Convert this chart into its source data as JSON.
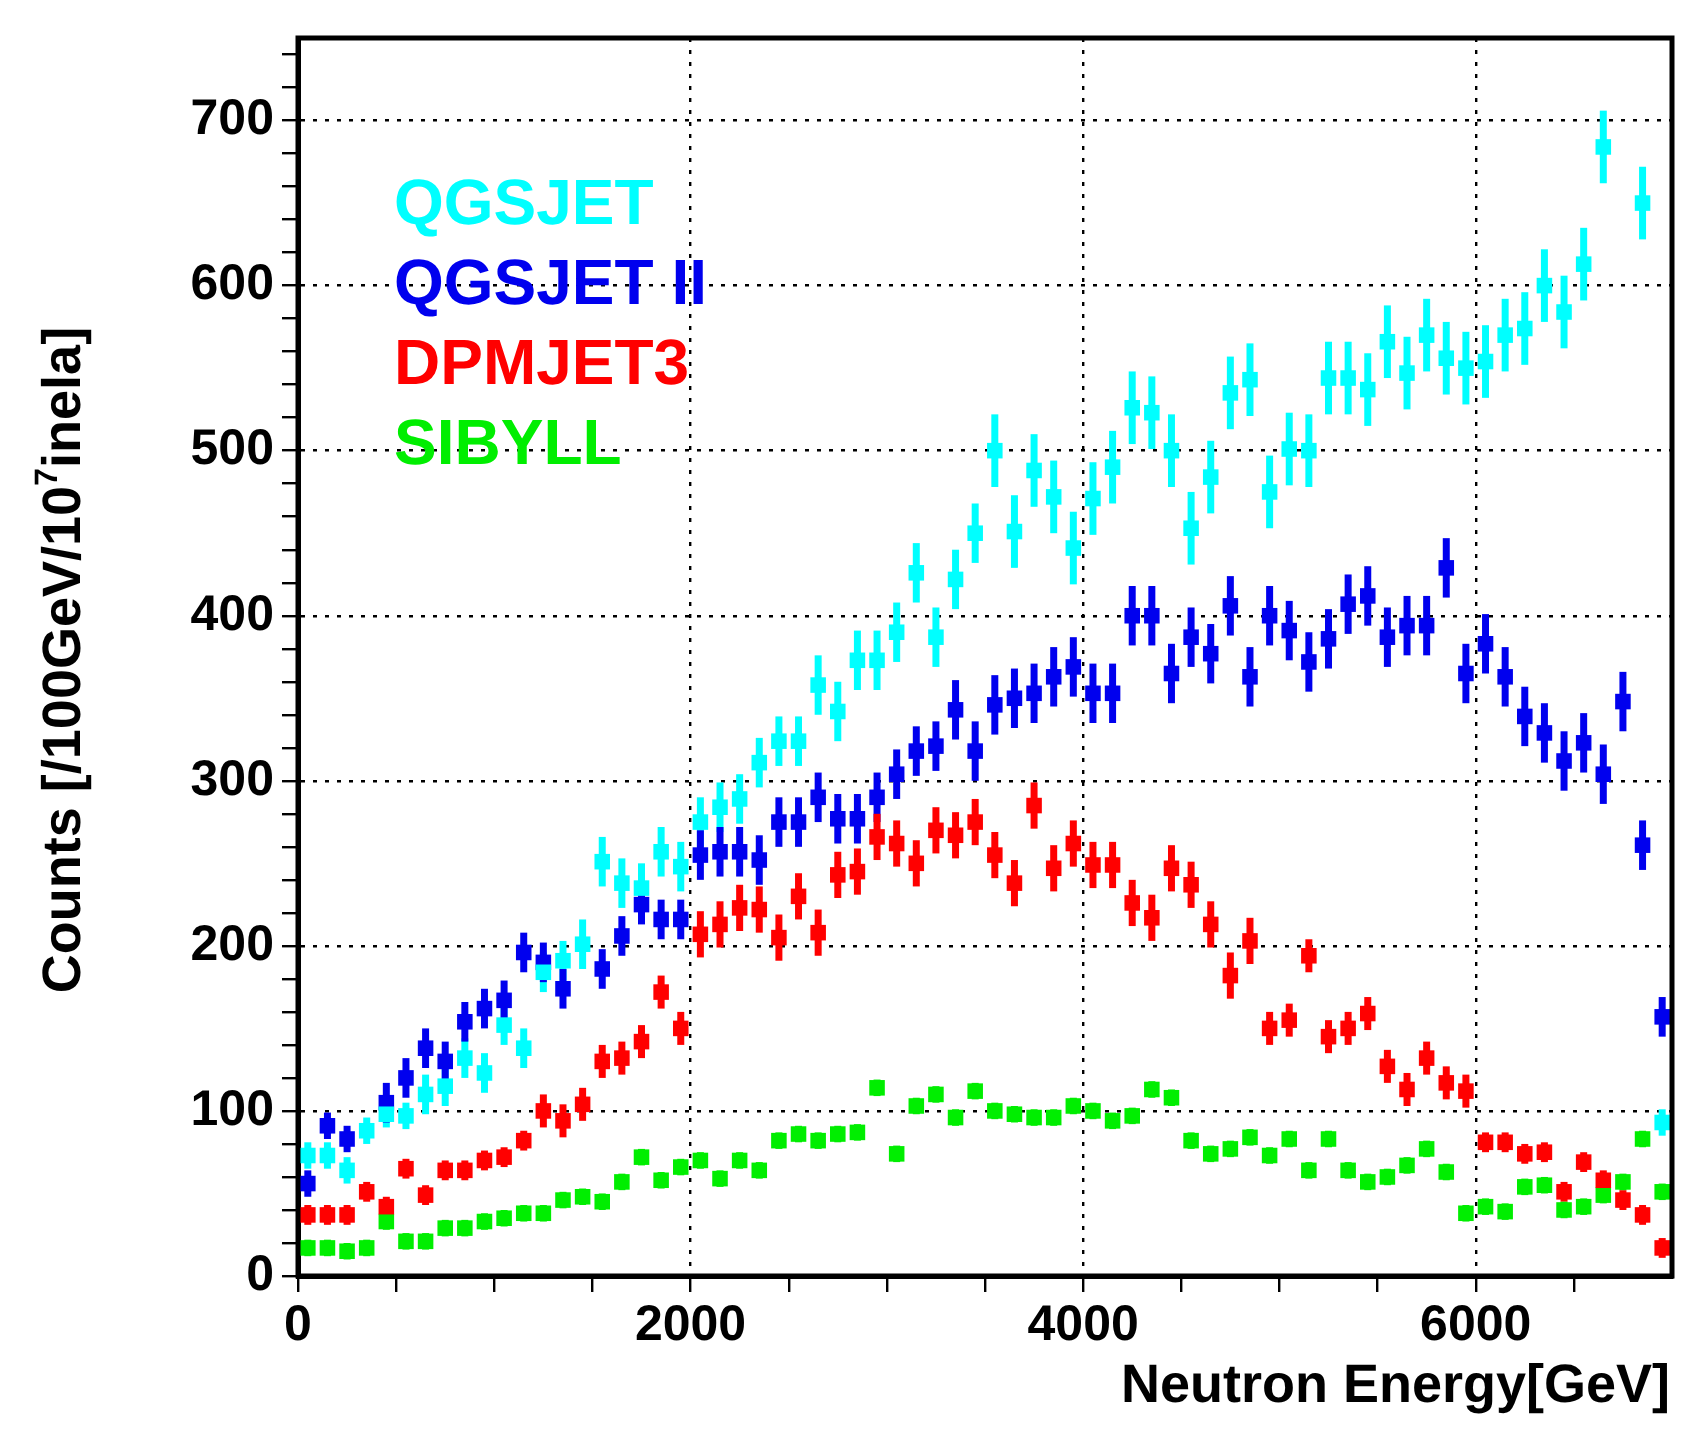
{
  "chart_data": {
    "type": "scatter",
    "xlabel": "Neutron Energy[GeV]",
    "ylabel": "Counts [/100GeV/10$^{7}$inela]",
    "marker": "square",
    "grid": true,
    "legend": "top left",
    "xlim": [
      0,
      7000
    ],
    "ylim": [
      0,
      750
    ],
    "xticks": [
      0,
      {
        "value": 500,
        "label": null
      },
      {
        "value": 1000,
        "label": null
      },
      {
        "value": 1500,
        "label": null
      },
      2000,
      {
        "value": 2500,
        "label": null
      },
      {
        "value": 3000,
        "label": null
      },
      {
        "value": 3500,
        "label": null
      },
      4000,
      {
        "value": 4500,
        "label": null
      },
      {
        "value": 5000,
        "label": null
      },
      {
        "value": 5500,
        "label": null
      },
      6000,
      {
        "value": 6500,
        "label": null
      }
    ],
    "yticks": [
      0,
      {
        "value": 20,
        "label": null
      },
      {
        "value": 40,
        "label": null
      },
      {
        "value": 60,
        "label": null
      },
      {
        "value": 80,
        "label": null
      },
      100,
      {
        "value": 120,
        "label": null
      },
      {
        "value": 140,
        "label": null
      },
      {
        "value": 160,
        "label": null
      },
      {
        "value": 180,
        "label": null
      },
      200,
      {
        "value": 220,
        "label": null
      },
      {
        "value": 240,
        "label": null
      },
      {
        "value": 260,
        "label": null
      },
      {
        "value": 280,
        "label": null
      },
      300,
      {
        "value": 320,
        "label": null
      },
      {
        "value": 340,
        "label": null
      },
      {
        "value": 360,
        "label": null
      },
      {
        "value": 380,
        "label": null
      },
      400,
      {
        "value": 420,
        "label": null
      },
      {
        "value": 440,
        "label": null
      },
      {
        "value": 460,
        "label": null
      },
      {
        "value": 480,
        "label": null
      },
      500,
      {
        "value": 520,
        "label": null
      },
      {
        "value": 540,
        "label": null
      },
      {
        "value": 560,
        "label": null
      },
      {
        "value": 580,
        "label": null
      },
      600,
      {
        "value": 620,
        "label": null
      },
      {
        "value": 640,
        "label": null
      },
      {
        "value": 660,
        "label": null
      },
      {
        "value": 680,
        "label": null
      },
      700,
      {
        "value": 720,
        "label": null
      },
      {
        "value": 740,
        "label": null
      }
    ],
    "x": [
      50,
      150,
      250,
      350,
      450,
      550,
      650,
      750,
      850,
      950,
      1050,
      1150,
      1250,
      1350,
      1450,
      1550,
      1650,
      1750,
      1850,
      1950,
      2050,
      2150,
      2250,
      2350,
      2450,
      2550,
      2650,
      2750,
      2850,
      2950,
      3050,
      3150,
      3250,
      3350,
      3450,
      3550,
      3650,
      3750,
      3850,
      3950,
      4050,
      4150,
      4250,
      4350,
      4450,
      4550,
      4650,
      4750,
      4850,
      4950,
      5050,
      5150,
      5250,
      5350,
      5450,
      5550,
      5650,
      5750,
      5850,
      5950,
      6050,
      6150,
      6250,
      6350,
      6450,
      6550,
      6650,
      6750,
      6850,
      6950
    ],
    "series": [
      {
        "name": "QGSJET",
        "color": "#00ffff",
        "values": [
          73,
          73,
          64,
          88,
          98,
          97,
          110,
          115,
          132,
          123,
          152,
          138,
          184,
          191,
          201,
          251,
          238,
          235,
          257,
          248,
          275,
          284,
          289,
          311,
          324,
          324,
          358,
          342,
          373,
          373,
          390,
          426,
          387,
          422,
          450,
          500,
          451,
          488,
          472,
          441,
          471,
          490,
          526,
          523,
          500,
          453,
          484,
          535,
          543,
          475,
          501,
          500,
          544,
          544,
          537,
          566,
          547,
          570,
          556,
          550,
          554,
          570,
          574,
          600,
          584,
          613,
          684,
          null,
          650,
          93
        ],
        "errors": [
          8,
          8,
          8,
          8,
          8,
          8,
          12,
          12,
          12,
          12,
          12,
          12,
          12,
          12,
          15,
          15,
          15,
          15,
          15,
          15,
          15,
          15,
          15,
          15,
          15,
          15,
          18,
          18,
          18,
          18,
          18,
          18,
          18,
          18,
          18,
          22,
          22,
          22,
          22,
          22,
          22,
          22,
          22,
          22,
          22,
          22,
          22,
          22,
          22,
          22,
          22,
          22,
          22,
          22,
          22,
          22,
          22,
          22,
          22,
          22,
          22,
          22,
          22,
          22,
          22,
          22,
          22,
          null,
          22,
          8
        ]
      },
      {
        "name": "QGSJET II",
        "color": "#0000ee",
        "values": [
          56,
          91,
          83,
          null,
          105,
          120,
          138,
          130,
          154,
          162,
          167,
          196,
          190,
          174,
          null,
          186,
          206,
          225,
          216,
          216,
          255,
          257,
          257,
          252,
          275,
          275,
          290,
          277,
          277,
          290,
          304,
          318,
          321,
          343,
          318,
          346,
          350,
          353,
          363,
          369,
          353,
          353,
          400,
          400,
          365,
          387,
          377,
          406,
          363,
          400,
          391,
          372,
          386,
          407,
          412,
          387,
          394,
          394,
          429,
          365,
          383,
          363,
          339,
          329,
          312,
          323,
          304,
          348,
          261,
          157
        ],
        "errors": [
          8,
          8,
          8,
          null,
          12,
          12,
          12,
          12,
          12,
          12,
          12,
          12,
          12,
          12,
          null,
          12,
          12,
          12,
          12,
          12,
          15,
          15,
          15,
          15,
          15,
          15,
          15,
          15,
          15,
          15,
          15,
          15,
          15,
          18,
          18,
          18,
          18,
          18,
          18,
          18,
          18,
          18,
          18,
          18,
          18,
          18,
          18,
          18,
          18,
          18,
          18,
          18,
          18,
          18,
          18,
          18,
          18,
          18,
          18,
          18,
          18,
          18,
          18,
          18,
          18,
          18,
          18,
          18,
          15,
          12
        ]
      },
      {
        "name": "DPMJET3",
        "color": "#ff0000",
        "values": [
          37,
          37,
          37,
          51,
          42,
          65,
          49,
          64,
          64,
          70,
          72,
          82,
          100,
          94,
          104,
          130,
          132,
          142,
          172,
          150,
          207,
          213,
          223,
          222,
          205,
          230,
          208,
          243,
          245,
          266,
          262,
          250,
          270,
          267,
          275,
          255,
          238,
          285,
          247,
          262,
          249,
          249,
          226,
          217,
          247,
          237,
          213,
          182,
          203,
          150,
          155,
          194,
          145,
          150,
          159,
          127,
          113,
          132,
          117,
          112,
          81,
          81,
          74,
          75,
          51,
          69,
          58,
          46,
          37,
          17
        ],
        "errors": [
          6,
          6,
          6,
          6,
          6,
          6,
          6,
          6,
          6,
          6,
          6,
          6,
          10,
          10,
          10,
          10,
          10,
          10,
          10,
          10,
          14,
          14,
          14,
          14,
          14,
          14,
          14,
          14,
          14,
          14,
          14,
          14,
          14,
          14,
          14,
          14,
          14,
          14,
          14,
          14,
          14,
          14,
          14,
          14,
          14,
          14,
          14,
          14,
          14,
          10,
          10,
          10,
          10,
          10,
          10,
          10,
          10,
          10,
          10,
          10,
          6,
          6,
          6,
          6,
          6,
          6,
          6,
          6,
          6,
          6
        ]
      },
      {
        "name": "SIBYLL",
        "color": "#00ee00",
        "values": [
          17,
          17,
          15,
          17,
          33,
          21,
          21,
          29,
          29,
          33,
          35,
          38,
          38,
          46,
          48,
          45,
          57,
          72,
          58,
          66,
          70,
          59,
          70,
          64,
          82,
          86,
          82,
          86,
          87,
          114,
          74,
          103,
          110,
          96,
          112,
          100,
          98,
          96,
          96,
          103,
          100,
          94,
          97,
          113,
          108,
          82,
          74,
          77,
          84,
          73,
          83,
          64,
          83,
          64,
          57,
          60,
          67,
          77,
          63,
          38,
          42,
          39,
          54,
          55,
          40,
          42,
          49,
          57,
          83,
          51
        ],
        "errors": [
          5,
          5,
          5,
          5,
          5,
          5,
          5,
          5,
          5,
          5,
          5,
          5,
          5,
          5,
          5,
          5,
          5,
          5,
          5,
          5,
          5,
          5,
          5,
          5,
          5,
          5,
          5,
          5,
          5,
          5,
          5,
          5,
          5,
          5,
          5,
          5,
          5,
          5,
          5,
          5,
          5,
          5,
          5,
          5,
          5,
          5,
          5,
          5,
          5,
          5,
          5,
          5,
          5,
          5,
          5,
          5,
          5,
          5,
          5,
          5,
          5,
          5,
          5,
          5,
          5,
          5,
          5,
          5,
          5,
          5
        ]
      }
    ]
  }
}
